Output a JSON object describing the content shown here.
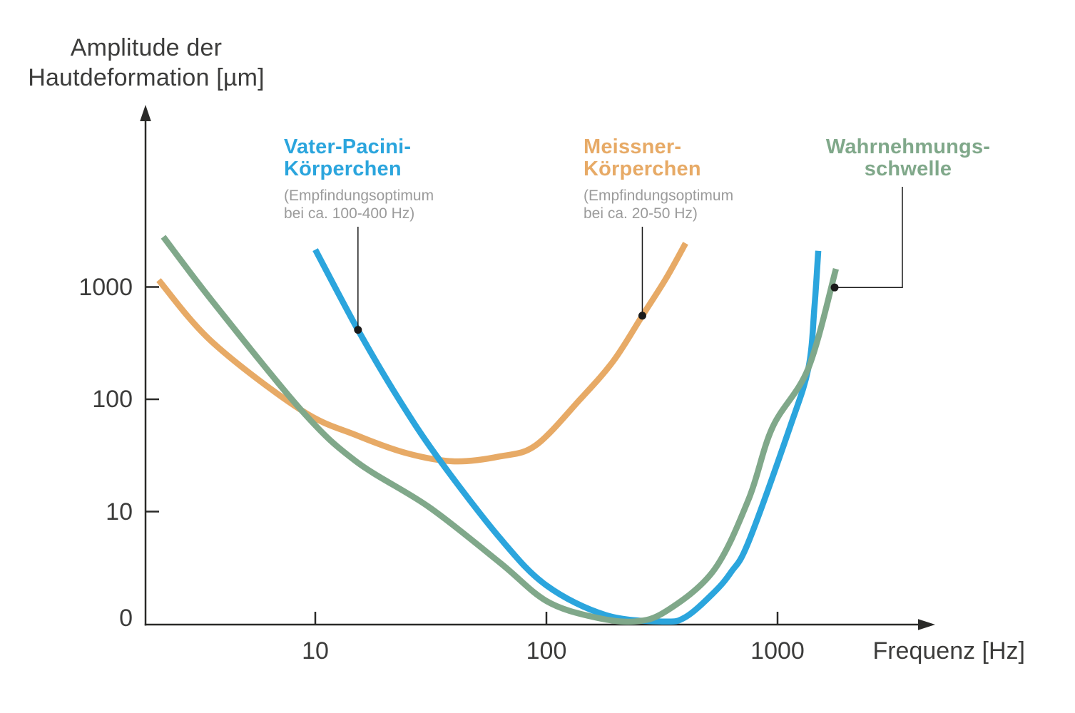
{
  "colors": {
    "axis": "#2a2a28",
    "axis_text": "#3c3c3b",
    "subtitle_gray": "#9b9b9b",
    "annotation_black": "#1a1a1a",
    "vater_blue": "#2BA5DD",
    "meissner_orange": "#E7AA66",
    "schwelle_green": "#80A88A"
  },
  "chart_data": {
    "type": "line",
    "x_scale": "log",
    "y_scale": "log",
    "grid": false,
    "legend_position": "labels-above-plot-with-leader-lines",
    "title": "",
    "xlabel": "Frequenz [Hz]",
    "ylabel": "Amplitude der Hautdeformation [µm]",
    "ylabel_lines": [
      "Amplitude der",
      "Hautdeformation [µm]"
    ],
    "x_range_hz": [
      2,
      2000
    ],
    "y_range_um": [
      1,
      3000
    ],
    "x_ticks": [
      {
        "label": "10",
        "f": 10
      },
      {
        "label": "100",
        "f": 100
      },
      {
        "label": "1000",
        "f": 1000
      }
    ],
    "y_ticks": [
      {
        "label": "1000",
        "a": 1000,
        "mark": true
      },
      {
        "label": "100",
        "a": 100,
        "mark": true
      },
      {
        "label": "10",
        "a": 10,
        "mark": true
      },
      {
        "label": "0",
        "a": 1,
        "mark": false
      }
    ],
    "series": [
      {
        "id": "meissner",
        "name": "Meissner-Körperchen",
        "note": "(Empfindungsoptimum bei ca. 20-50 Hz)",
        "label_lines": [
          "Meissner-",
          "Körperchen"
        ],
        "note_lines": [
          "(Empfindungsoptimum",
          "bei ca. 20-50 Hz)"
        ],
        "color": "#E7AA66",
        "points_f_hz_amp_um": [
          [
            2.1,
            1150
          ],
          [
            3.6,
            320
          ],
          [
            8.7,
            80
          ],
          [
            15,
            48
          ],
          [
            25,
            33
          ],
          [
            40,
            28
          ],
          [
            63,
            31
          ],
          [
            90,
            39
          ],
          [
            140,
            100
          ],
          [
            195,
            220
          ],
          [
            260,
            555
          ],
          [
            330,
            1200
          ],
          [
            400,
            2450
          ]
        ]
      },
      {
        "id": "vater",
        "name": "Vater-Pacini-Körperchen",
        "note": "(Empfindungsoptimum bei ca. 100-400 Hz)",
        "label_lines": [
          "Vater-Pacini-",
          "Körperchen"
        ],
        "note_lines": [
          "(Empfindungsoptimum",
          "bei ca. 100-400 Hz)"
        ],
        "color": "#2BA5DD",
        "points_f_hz_amp_um": [
          [
            10,
            2150
          ],
          [
            15.3,
            415
          ],
          [
            23,
            100
          ],
          [
            34,
            30
          ],
          [
            63,
            5.8
          ],
          [
            100,
            2.2
          ],
          [
            180,
            1.2
          ],
          [
            320,
            1.05
          ],
          [
            400,
            1.15
          ],
          [
            530,
            1.9
          ],
          [
            630,
            2.9
          ],
          [
            750,
            5.4
          ],
          [
            1130,
            56
          ],
          [
            1360,
            190
          ],
          [
            1445,
            670
          ],
          [
            1500,
            2100
          ]
        ]
      },
      {
        "id": "schwelle",
        "name": "Wahrnehmungsschwelle",
        "note": "",
        "label_lines": [
          "Wahrnehmungs-",
          "schwelle"
        ],
        "note_lines": [],
        "color": "#80A88A",
        "points_f_hz_amp_um": [
          [
            2.2,
            2800
          ],
          [
            3.6,
            740
          ],
          [
            8.7,
            80
          ],
          [
            15,
            28
          ],
          [
            31,
            11
          ],
          [
            63,
            3.5
          ],
          [
            100,
            1.6
          ],
          [
            160,
            1.15
          ],
          [
            240,
            1.05
          ],
          [
            330,
            1.3
          ],
          [
            530,
            3
          ],
          [
            750,
            12.9
          ],
          [
            950,
            56
          ],
          [
            1360,
            190
          ],
          [
            1790,
            1450
          ]
        ]
      }
    ],
    "annotations": [
      {
        "series": "vater",
        "f": 15.3,
        "a": 415,
        "leader": "up"
      },
      {
        "series": "meissner",
        "f": 260,
        "a": 555,
        "leader": "up"
      },
      {
        "series": "schwelle",
        "f": 1766,
        "a": 990,
        "leader": "elbow-right"
      }
    ]
  }
}
